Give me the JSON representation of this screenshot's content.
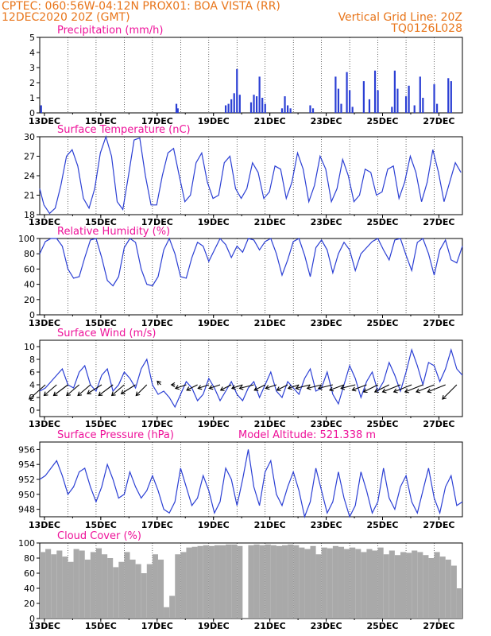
{
  "header": {
    "line1_left": "CPTEC:   060:56W-04:12N   PROX01: BOA VISTA (RR)",
    "line2_left": "12DEC2020 20Z (GMT)",
    "line2_right": "Vertical Grid Line: 20Z",
    "line3_right": "TQ0126L028"
  },
  "colors": {
    "header": "#e8751a",
    "title": "#ee1199",
    "line": "#2b3fd4",
    "cloud": "#a9a9a9"
  },
  "chart_data": [
    {
      "id": "precip",
      "type": "bar",
      "title": "Precipitation (mm/h)",
      "ylim": [
        0,
        5
      ],
      "yticks": [
        0,
        1,
        2,
        3,
        4,
        5
      ],
      "xticks": [
        "13DEC",
        "15DEC",
        "17DEC",
        "19DEC",
        "21DEC",
        "23DEC",
        "25DEC",
        "27DEC"
      ],
      "x_unit": "days since 12DEC2020 20Z",
      "xlim": [
        0,
        15
      ],
      "x": [
        0.05,
        4.85,
        4.9,
        6.6,
        6.7,
        6.8,
        6.9,
        7.0,
        7.1,
        7.5,
        7.6,
        7.7,
        7.8,
        7.9,
        8.0,
        8.6,
        8.7,
        8.8,
        8.9,
        9.6,
        9.7,
        10.5,
        10.6,
        10.7,
        10.9,
        11.0,
        11.1,
        11.5,
        11.7,
        11.9,
        12.0,
        12.5,
        12.6,
        12.7,
        13.0,
        13.1,
        13.3,
        13.5,
        13.6,
        14.0,
        14.1,
        14.5,
        14.6
      ],
      "values": [
        0.5,
        0.6,
        0.3,
        0.5,
        0.6,
        0.9,
        1.3,
        2.9,
        1.2,
        0.7,
        1.2,
        1.1,
        2.4,
        1.0,
        0.6,
        0.3,
        1.1,
        0.5,
        0.3,
        0.5,
        0.3,
        2.4,
        1.6,
        0.6,
        2.7,
        1.5,
        0.4,
        2.1,
        0.9,
        2.8,
        1.5,
        0.4,
        2.8,
        1.6,
        1.1,
        1.8,
        0.5,
        2.4,
        1.0,
        1.9,
        0.6,
        2.3,
        2.1
      ]
    },
    {
      "id": "temp",
      "type": "line",
      "title": "Surface Temperature (nC)",
      "ylim": [
        18,
        30
      ],
      "yticks": [
        18,
        21,
        24,
        27,
        30
      ],
      "xticks": [
        "13DEC",
        "15DEC",
        "17DEC",
        "19DEC",
        "21DEC",
        "23DEC",
        "25DEC",
        "27DEC"
      ],
      "x_unit": "days since 12DEC2020 20Z",
      "xlim": [
        0,
        15
      ],
      "x": [
        0,
        0.15,
        0.35,
        0.55,
        0.75,
        0.95,
        1.15,
        1.35,
        1.55,
        1.75,
        1.95,
        2.15,
        2.35,
        2.55,
        2.75,
        2.95,
        3.15,
        3.35,
        3.55,
        3.75,
        3.95,
        4.15,
        4.35,
        4.55,
        4.75,
        4.95,
        5.15,
        5.35,
        5.55,
        5.75,
        5.95,
        6.15,
        6.35,
        6.55,
        6.75,
        6.95,
        7.15,
        7.35,
        7.55,
        7.75,
        7.95,
        8.15,
        8.35,
        8.55,
        8.75,
        8.95,
        9.15,
        9.35,
        9.55,
        9.75,
        9.95,
        10.15,
        10.35,
        10.55,
        10.75,
        10.95,
        11.15,
        11.35,
        11.55,
        11.75,
        11.95,
        12.15,
        12.35,
        12.55,
        12.75,
        12.95,
        13.15,
        13.35,
        13.55,
        13.75,
        13.95,
        14.15,
        14.35,
        14.55,
        14.75,
        14.95
      ],
      "values": [
        22.0,
        19.5,
        18.2,
        19.0,
        22.5,
        27.0,
        28.0,
        25.5,
        20.5,
        19.0,
        22.0,
        27.5,
        30.0,
        27.0,
        20.0,
        18.8,
        24.0,
        29.5,
        29.8,
        24.0,
        19.5,
        19.5,
        24.0,
        27.5,
        28.2,
        24.0,
        20.0,
        21.0,
        26.0,
        27.5,
        23.0,
        20.5,
        21.0,
        26.0,
        27.0,
        22.0,
        20.5,
        22.0,
        26.0,
        24.5,
        20.5,
        21.5,
        25.5,
        25.0,
        20.5,
        23.0,
        27.5,
        25.0,
        20.0,
        22.5,
        27.0,
        25.0,
        20.0,
        22.0,
        26.5,
        24.0,
        20.0,
        21.0,
        25.0,
        24.5,
        21.0,
        21.5,
        25.0,
        25.5,
        20.5,
        23.0,
        27.0,
        24.5,
        20.0,
        23.0,
        28.0,
        24.5,
        20.0,
        23.0,
        26.0,
        24.5
      ]
    },
    {
      "id": "rh",
      "type": "line",
      "title": "Relative Humidity (%)",
      "ylim": [
        0,
        100
      ],
      "yticks": [
        0,
        20,
        40,
        60,
        80,
        100
      ],
      "xticks": [
        "13DEC",
        "15DEC",
        "17DEC",
        "19DEC",
        "21DEC",
        "23DEC",
        "25DEC",
        "27DEC"
      ],
      "x_unit": "days since 12DEC2020 20Z",
      "xlim": [
        0,
        15
      ],
      "x": [
        0,
        0.2,
        0.4,
        0.6,
        0.8,
        1.0,
        1.2,
        1.4,
        1.6,
        1.8,
        2.0,
        2.2,
        2.4,
        2.6,
        2.8,
        3.0,
        3.2,
        3.4,
        3.6,
        3.8,
        4.0,
        4.2,
        4.4,
        4.6,
        4.8,
        5.0,
        5.2,
        5.4,
        5.6,
        5.8,
        6.0,
        6.2,
        6.4,
        6.6,
        6.8,
        7.0,
        7.2,
        7.4,
        7.6,
        7.8,
        8.0,
        8.2,
        8.4,
        8.6,
        8.8,
        9.0,
        9.2,
        9.4,
        9.6,
        9.8,
        10.0,
        10.2,
        10.4,
        10.6,
        10.8,
        11.0,
        11.2,
        11.4,
        11.6,
        11.8,
        12.0,
        12.2,
        12.4,
        12.6,
        12.8,
        13.0,
        13.2,
        13.4,
        13.6,
        13.8,
        14.0,
        14.2,
        14.4,
        14.6,
        14.8,
        15.0
      ],
      "values": [
        80,
        96,
        100,
        100,
        90,
        60,
        48,
        50,
        75,
        98,
        100,
        75,
        45,
        38,
        50,
        88,
        100,
        95,
        60,
        40,
        38,
        50,
        85,
        100,
        80,
        50,
        48,
        75,
        95,
        90,
        70,
        85,
        100,
        92,
        75,
        90,
        82,
        100,
        98,
        85,
        96,
        100,
        80,
        52,
        72,
        96,
        100,
        78,
        50,
        88,
        98,
        85,
        55,
        80,
        95,
        85,
        58,
        80,
        88,
        96,
        100,
        85,
        72,
        98,
        100,
        78,
        58,
        95,
        100,
        80,
        52,
        85,
        98,
        72,
        68,
        90
      ]
    },
    {
      "id": "wind",
      "type": "line",
      "title": "Surface Wind (m/s)",
      "ylim": [
        -1,
        11
      ],
      "yticks": [
        0,
        2,
        4,
        6,
        8,
        10
      ],
      "xticks": [
        "13DEC",
        "15DEC",
        "17DEC",
        "19DEC",
        "21DEC",
        "23DEC",
        "25DEC",
        "27DEC"
      ],
      "x_unit": "days since 12DEC2020 20Z",
      "xlim": [
        0,
        15
      ],
      "x": [
        0,
        0.2,
        0.4,
        0.6,
        0.8,
        1.0,
        1.2,
        1.4,
        1.6,
        1.8,
        2.0,
        2.2,
        2.4,
        2.6,
        2.8,
        3.0,
        3.2,
        3.4,
        3.6,
        3.8,
        4.0,
        4.2,
        4.4,
        4.6,
        4.8,
        5.0,
        5.2,
        5.4,
        5.6,
        5.8,
        6.0,
        6.2,
        6.4,
        6.6,
        6.8,
        7.0,
        7.2,
        7.4,
        7.6,
        7.8,
        8.0,
        8.2,
        8.4,
        8.6,
        8.8,
        9.0,
        9.2,
        9.4,
        9.6,
        9.8,
        10.0,
        10.2,
        10.4,
        10.6,
        10.8,
        11.0,
        11.2,
        11.4,
        11.6,
        11.8,
        12.0,
        12.2,
        12.4,
        12.6,
        12.8,
        13.0,
        13.2,
        13.4,
        13.6,
        13.8,
        14.0,
        14.2,
        14.4,
        14.6,
        14.8,
        15.0
      ],
      "values": [
        3.0,
        3.5,
        4.5,
        5.5,
        6.5,
        4.0,
        3.5,
        6.0,
        7.0,
        4.0,
        3.0,
        5.5,
        6.5,
        3.0,
        4.0,
        6.0,
        5.0,
        3.5,
        6.5,
        8.0,
        4.0,
        2.5,
        3.0,
        2.0,
        0.5,
        2.5,
        4.5,
        3.5,
        1.5,
        2.5,
        5.0,
        3.5,
        1.5,
        3.0,
        4.5,
        2.5,
        1.5,
        3.5,
        4.5,
        2.0,
        4.0,
        6.0,
        3.0,
        2.0,
        4.5,
        3.5,
        2.5,
        5.0,
        6.5,
        3.0,
        3.5,
        6.0,
        2.5,
        1.0,
        4.0,
        7.0,
        5.0,
        2.0,
        4.5,
        6.0,
        3.0,
        4.5,
        7.5,
        5.5,
        3.0,
        6.0,
        9.5,
        7.0,
        4.0,
        7.5,
        7.0,
        4.5,
        6.5,
        9.5,
        6.5,
        5.5
      ]
    },
    {
      "id": "pres",
      "type": "line",
      "title": "Surface Pressure (hPa)",
      "annotation": "Model Altitude: 521.338  m",
      "ylim": [
        947,
        957
      ],
      "yticks": [
        948,
        950,
        952,
        954,
        956
      ],
      "xticks": [
        "13DEC",
        "15DEC",
        "17DEC",
        "19DEC",
        "21DEC",
        "23DEC",
        "25DEC",
        "27DEC"
      ],
      "x_unit": "days since 12DEC2020 20Z",
      "xlim": [
        0,
        15
      ],
      "x": [
        0,
        0.2,
        0.4,
        0.6,
        0.8,
        1.0,
        1.2,
        1.4,
        1.6,
        1.8,
        2.0,
        2.2,
        2.4,
        2.6,
        2.8,
        3.0,
        3.2,
        3.4,
        3.6,
        3.8,
        4.0,
        4.2,
        4.4,
        4.6,
        4.8,
        5.0,
        5.2,
        5.4,
        5.6,
        5.8,
        6.0,
        6.2,
        6.4,
        6.6,
        6.8,
        7.0,
        7.2,
        7.4,
        7.6,
        7.8,
        8.0,
        8.2,
        8.4,
        8.6,
        8.8,
        9.0,
        9.2,
        9.4,
        9.6,
        9.8,
        10.0,
        10.2,
        10.4,
        10.6,
        10.8,
        11.0,
        11.2,
        11.4,
        11.6,
        11.8,
        12.0,
        12.2,
        12.4,
        12.6,
        12.8,
        13.0,
        13.2,
        13.4,
        13.6,
        13.8,
        14.0,
        14.2,
        14.4,
        14.6,
        14.8,
        15.0
      ],
      "values": [
        952,
        952.5,
        953.5,
        954.5,
        952.5,
        950,
        951,
        953,
        953.5,
        951,
        949,
        951,
        954,
        952,
        949.5,
        950,
        953,
        951,
        949.5,
        950.5,
        952.5,
        950.5,
        948,
        947.5,
        949,
        953.5,
        951,
        948.5,
        949.5,
        952.5,
        950.5,
        947.5,
        949,
        953.5,
        952,
        948.5,
        952,
        956,
        951,
        948.5,
        953,
        954.5,
        950,
        948.5,
        951,
        953,
        950.5,
        947,
        949,
        953.5,
        950.5,
        947.5,
        949,
        953,
        949.5,
        947,
        948.5,
        953,
        950.5,
        947.5,
        949,
        953.5,
        949.5,
        948,
        951,
        952.5,
        949,
        947.5,
        950.5,
        953.5,
        949.5,
        947.5,
        951,
        952.5,
        948.5,
        949
      ]
    },
    {
      "id": "cloud",
      "type": "bar",
      "title": "Cloud Cover (%)",
      "ylim": [
        0,
        100
      ],
      "yticks": [
        0,
        20,
        40,
        60,
        80,
        100
      ],
      "xticks": [
        "13DEC",
        "15DEC",
        "17DEC",
        "19DEC",
        "21DEC",
        "23DEC",
        "25DEC",
        "27DEC"
      ],
      "x_unit": "days since 12DEC2020 20Z",
      "xlim": [
        0,
        15
      ],
      "x": [
        0.1,
        0.3,
        0.5,
        0.7,
        0.9,
        1.1,
        1.3,
        1.5,
        1.7,
        1.9,
        2.1,
        2.3,
        2.5,
        2.7,
        2.9,
        3.1,
        3.3,
        3.5,
        3.7,
        3.9,
        4.1,
        4.3,
        4.5,
        4.7,
        4.9,
        5.1,
        5.3,
        5.5,
        5.7,
        5.9,
        6.1,
        6.3,
        6.5,
        6.7,
        6.9,
        7.1,
        7.3,
        7.5,
        7.7,
        7.9,
        8.1,
        8.3,
        8.5,
        8.7,
        8.9,
        9.1,
        9.3,
        9.5,
        9.7,
        9.9,
        10.1,
        10.3,
        10.5,
        10.7,
        10.9,
        11.1,
        11.3,
        11.5,
        11.7,
        11.9,
        12.1,
        12.3,
        12.5,
        12.7,
        12.9,
        13.1,
        13.3,
        13.5,
        13.7,
        13.9,
        14.1,
        14.3,
        14.5,
        14.7,
        14.9
      ],
      "values": [
        88,
        92,
        85,
        90,
        82,
        75,
        92,
        90,
        78,
        88,
        93,
        85,
        80,
        68,
        75,
        88,
        78,
        72,
        60,
        72,
        85,
        78,
        15,
        30,
        85,
        88,
        94,
        95,
        96,
        97,
        96,
        97,
        97,
        98,
        98,
        96,
        1,
        97,
        98,
        97,
        98,
        97,
        96,
        97,
        98,
        97,
        94,
        92,
        96,
        85,
        94,
        93,
        96,
        95,
        92,
        94,
        92,
        88,
        92,
        90,
        94,
        85,
        90,
        84,
        88,
        87,
        90,
        88,
        84,
        80,
        88,
        82,
        78,
        70,
        40
      ]
    },
    {
      "id": "wind_vectors",
      "type": "scatter",
      "title": "",
      "x": [
        0.2,
        0.6,
        1.0,
        1.4,
        1.8,
        2.2,
        2.6,
        3.0,
        3.4,
        3.8,
        4.3,
        4.8,
        5.2,
        5.6,
        6.0,
        6.4,
        6.8,
        7.2,
        7.6,
        8.0,
        8.4,
        8.8,
        9.2,
        9.6,
        10.0,
        10.4,
        10.8,
        11.2,
        11.6,
        12.0,
        12.4,
        12.8,
        13.2,
        13.6,
        14.0,
        14.4,
        14.8
      ],
      "u": [
        -4.5,
        -3.5,
        -4,
        -3.5,
        -3.5,
        -4,
        -4,
        -3.5,
        -4,
        -3,
        -1,
        -1,
        -3,
        -3,
        -3,
        -3,
        -3,
        -3,
        -4,
        -3,
        -3,
        -3,
        -3,
        -4,
        -4,
        -4,
        -4,
        -4,
        -4,
        -4,
        -4,
        -5,
        -5,
        -5,
        -5,
        -5,
        -4
      ],
      "v": [
        -4,
        -3,
        -3,
        -3,
        -3,
        -2.5,
        -3,
        -3,
        -2.5,
        -3,
        1,
        0,
        -1,
        -1.5,
        -1,
        -1,
        -1.5,
        -1,
        -1,
        -1.5,
        -1,
        -1.5,
        -1,
        -1,
        -1,
        -1,
        -1.5,
        -1,
        -1.5,
        -2,
        -2,
        -2,
        -2,
        -2,
        -2,
        -2,
        -4
      ]
    }
  ]
}
